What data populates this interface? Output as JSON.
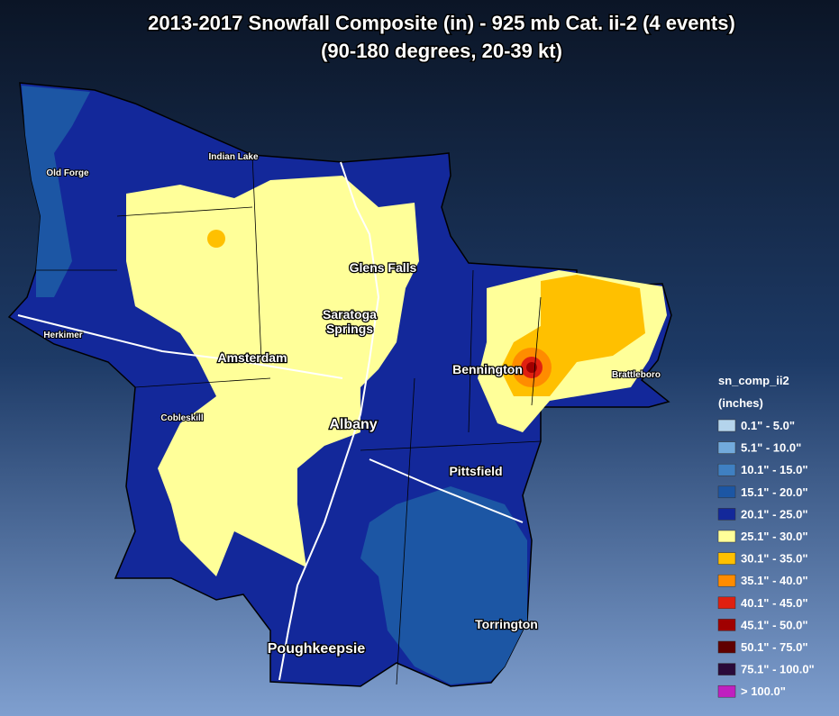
{
  "title": [
    "2013-2017 Snowfall Composite (in) - 925 mb Cat. ii-2 (4 events)",
    "(90-180 degrees, 20-39 kt)"
  ],
  "places": [
    "Old Forge",
    "Indian Lake",
    "Glens Falls",
    "Saratoga",
    "Springs",
    "Herkimer",
    "Amsterdam",
    "Bennington",
    "Brattleboro",
    "Cobleskill",
    "Albany",
    "Pittsfield",
    "Torrington",
    "Poughkeepsie"
  ],
  "legend": {
    "title": "sn_comp_ii2",
    "units": "(inches)",
    "entries": [
      {
        "label": "0.1\" - 5.0\"",
        "color": "#b4d4ec"
      },
      {
        "label": "5.1\" - 10.0\"",
        "color": "#72aadc"
      },
      {
        "label": "10.1\" - 15.0\"",
        "color": "#3f80c2"
      },
      {
        "label": "15.1\" - 20.0\"",
        "color": "#1c56a4"
      },
      {
        "label": "20.1\" - 25.0\"",
        "color": "#13289a"
      },
      {
        "label": "25.1\" - 30.0\"",
        "color": "#ffff99"
      },
      {
        "label": "30.1\" - 35.0\"",
        "color": "#ffc000"
      },
      {
        "label": "35.1\" - 40.0\"",
        "color": "#ff8c00"
      },
      {
        "label": "40.1\" - 45.0\"",
        "color": "#e02010"
      },
      {
        "label": "45.1\" - 50.0\"",
        "color": "#a00000"
      },
      {
        "label": "50.1\" - 75.0\"",
        "color": "#600000"
      },
      {
        "label": "75.1\" - 100.0\"",
        "color": "#2a0a3a"
      },
      {
        "label": "> 100.0\"",
        "color": "#c020c0"
      }
    ]
  }
}
